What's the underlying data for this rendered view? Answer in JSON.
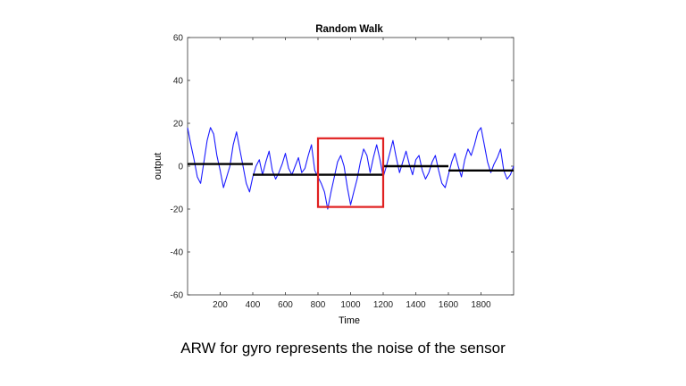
{
  "caption": "ARW for gyro represents the noise of the sensor",
  "chart_data": {
    "type": "line",
    "title": "Random Walk",
    "xlabel": "Time",
    "ylabel": "output",
    "xlim": [
      0,
      2000
    ],
    "ylim": [
      -60,
      60
    ],
    "x_ticks": [
      200,
      400,
      600,
      800,
      1000,
      1200,
      1400,
      1600,
      1800
    ],
    "y_ticks": [
      -60,
      -40,
      -20,
      0,
      20,
      40,
      60
    ],
    "grid": false,
    "colors": {
      "signal": "#1a1aff",
      "segment_mean": "#000000",
      "highlight": "#e02020"
    },
    "series": [
      {
        "style": "signal",
        "x": [
          0,
          20,
          40,
          60,
          80,
          100,
          120,
          140,
          160,
          180,
          200,
          220,
          240,
          260,
          280,
          300,
          320,
          340,
          360,
          380,
          400,
          420,
          440,
          460,
          480,
          500,
          520,
          540,
          560,
          580,
          600,
          620,
          640,
          660,
          680,
          700,
          720,
          740,
          760,
          780,
          800,
          820,
          840,
          860,
          880,
          900,
          920,
          940,
          960,
          980,
          1000,
          1020,
          1040,
          1060,
          1080,
          1100,
          1120,
          1140,
          1160,
          1180,
          1200,
          1220,
          1240,
          1260,
          1280,
          1300,
          1320,
          1340,
          1360,
          1380,
          1400,
          1420,
          1440,
          1460,
          1480,
          1500,
          1520,
          1540,
          1560,
          1580,
          1600,
          1620,
          1640,
          1660,
          1680,
          1700,
          1720,
          1740,
          1760,
          1780,
          1800,
          1820,
          1840,
          1860,
          1880,
          1900,
          1920,
          1940,
          1960,
          1980,
          2000
        ],
        "values": [
          18,
          10,
          3,
          -5,
          -8,
          2,
          12,
          18,
          15,
          5,
          -2,
          -10,
          -5,
          0,
          10,
          16,
          8,
          0,
          -8,
          -12,
          -5,
          0,
          3,
          -4,
          2,
          7,
          -2,
          -6,
          -3,
          1,
          6,
          -1,
          -4,
          0,
          4,
          -3,
          -1,
          5,
          10,
          -2,
          -5,
          -8,
          -12,
          -20,
          -12,
          -5,
          2,
          5,
          0,
          -10,
          -18,
          -12,
          -6,
          2,
          8,
          5,
          -3,
          4,
          10,
          3,
          -5,
          0,
          6,
          12,
          4,
          -3,
          2,
          7,
          1,
          -4,
          3,
          5,
          -2,
          -6,
          -3,
          2,
          5,
          -2,
          -8,
          -10,
          -4,
          2,
          6,
          0,
          -5,
          3,
          8,
          5,
          10,
          16,
          18,
          10,
          2,
          -3,
          1,
          4,
          8,
          -2,
          -6,
          -4,
          0
        ]
      },
      {
        "style": "segment_mean",
        "x": [
          0,
          400
        ],
        "values": [
          1,
          1
        ]
      },
      {
        "style": "segment_mean",
        "x": [
          400,
          800
        ],
        "values": [
          -4,
          -4
        ]
      },
      {
        "style": "segment_mean",
        "x": [
          800,
          1200
        ],
        "values": [
          -4,
          -4
        ]
      },
      {
        "style": "segment_mean",
        "x": [
          1200,
          1600
        ],
        "values": [
          0,
          0
        ]
      },
      {
        "style": "segment_mean",
        "x": [
          1600,
          2000
        ],
        "values": [
          -2,
          -2
        ]
      }
    ],
    "annotation": {
      "style": "highlight",
      "x": [
        800,
        1200
      ],
      "y": [
        -19,
        13
      ]
    }
  }
}
